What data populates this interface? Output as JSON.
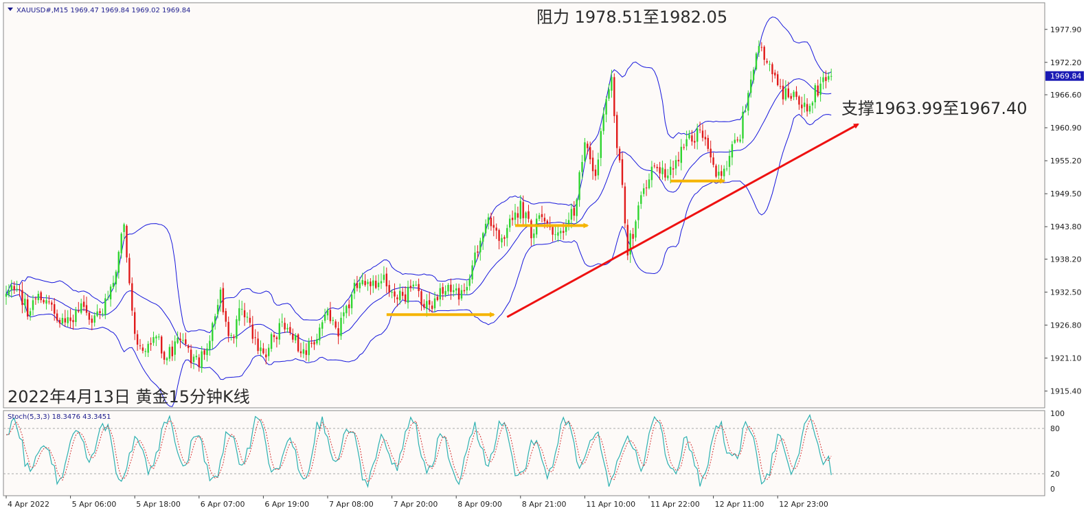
{
  "chart_data": {
    "type": "candlestick",
    "symbol_header": "XAUUSD#,M15  1969.47 1969.84 1969.02 1969.84",
    "current_price_label": "1969.84",
    "current_price": 1969.84,
    "resistance_text": "阻力 1978.51至1982.05",
    "support_text": "支撑1963.99至1967.40",
    "caption_text": "2022年4月13日 黄金15分钟K线",
    "ylim": [
      1912.5,
      1982.5
    ],
    "y_ticks": [
      {
        "label": "1977.90",
        "value": 1977.9
      },
      {
        "label": "1972.20",
        "value": 1972.2
      },
      {
        "label": "1966.60",
        "value": 1966.6
      },
      {
        "label": "1960.90",
        "value": 1960.9
      },
      {
        "label": "1955.20",
        "value": 1955.2
      },
      {
        "label": "1949.50",
        "value": 1949.5
      },
      {
        "label": "1943.80",
        "value": 1943.8
      },
      {
        "label": "1938.20",
        "value": 1938.2
      },
      {
        "label": "1932.50",
        "value": 1932.5
      },
      {
        "label": "1926.80",
        "value": 1926.8
      },
      {
        "label": "1921.10",
        "value": 1921.1
      },
      {
        "label": "1915.40",
        "value": 1915.4
      }
    ],
    "x_ticks": [
      {
        "label": "4 Apr 2022",
        "bar": 0
      },
      {
        "label": "5 Apr 06:00",
        "bar": 24
      },
      {
        "label": "5 Apr 18:00",
        "bar": 48
      },
      {
        "label": "6 Apr 07:00",
        "bar": 72
      },
      {
        "label": "6 Apr 19:00",
        "bar": 96
      },
      {
        "label": "7 Apr 08:00",
        "bar": 120
      },
      {
        "label": "7 Apr 20:00",
        "bar": 144
      },
      {
        "label": "8 Apr 09:00",
        "bar": 168
      },
      {
        "label": "8 Apr 21:00",
        "bar": 192
      },
      {
        "label": "11 Apr 10:00",
        "bar": 216
      },
      {
        "label": "11 Apr 22:00",
        "bar": 240
      },
      {
        "label": "12 Apr 11:00",
        "bar": 264
      },
      {
        "label": "12 Apr 23:00",
        "bar": 288
      }
    ],
    "price_path": [
      [
        0,
        1931
      ],
      [
        4,
        1934
      ],
      [
        8,
        1929
      ],
      [
        12,
        1932
      ],
      [
        16,
        1930
      ],
      [
        20,
        1928
      ],
      [
        24,
        1927
      ],
      [
        28,
        1930
      ],
      [
        32,
        1928
      ],
      [
        36,
        1929
      ],
      [
        40,
        1934
      ],
      [
        44,
        1944
      ],
      [
        46,
        1934
      ],
      [
        48,
        1924
      ],
      [
        52,
        1922
      ],
      [
        56,
        1925
      ],
      [
        60,
        1921
      ],
      [
        64,
        1924
      ],
      [
        68,
        1922
      ],
      [
        72,
        1920
      ],
      [
        76,
        1925
      ],
      [
        80,
        1932
      ],
      [
        84,
        1924
      ],
      [
        88,
        1930
      ],
      [
        92,
        1925
      ],
      [
        96,
        1921
      ],
      [
        100,
        1925
      ],
      [
        104,
        1927
      ],
      [
        108,
        1924
      ],
      [
        112,
        1922
      ],
      [
        116,
        1925
      ],
      [
        120,
        1929
      ],
      [
        124,
        1926
      ],
      [
        128,
        1931
      ],
      [
        132,
        1935
      ],
      [
        136,
        1933
      ],
      [
        140,
        1935
      ],
      [
        144,
        1933
      ],
      [
        148,
        1931
      ],
      [
        152,
        1934
      ],
      [
        156,
        1930
      ],
      [
        160,
        1931
      ],
      [
        164,
        1933
      ],
      [
        168,
        1932
      ],
      [
        172,
        1934
      ],
      [
        176,
        1940
      ],
      [
        180,
        1945
      ],
      [
        184,
        1941
      ],
      [
        188,
        1944
      ],
      [
        192,
        1947
      ],
      [
        196,
        1943
      ],
      [
        200,
        1945
      ],
      [
        204,
        1943
      ],
      [
        208,
        1944
      ],
      [
        212,
        1947
      ],
      [
        216,
        1958
      ],
      [
        220,
        1953
      ],
      [
        224,
        1966
      ],
      [
        226,
        1969
      ],
      [
        228,
        1958
      ],
      [
        230,
        1950
      ],
      [
        232,
        1940
      ],
      [
        234,
        1943
      ],
      [
        238,
        1950
      ],
      [
        242,
        1955
      ],
      [
        246,
        1952
      ],
      [
        250,
        1955
      ],
      [
        254,
        1958
      ],
      [
        258,
        1960
      ],
      [
        262,
        1958
      ],
      [
        266,
        1952
      ],
      [
        270,
        1956
      ],
      [
        274,
        1960
      ],
      [
        278,
        1970
      ],
      [
        282,
        1975
      ],
      [
        286,
        1970
      ],
      [
        290,
        1967
      ],
      [
        294,
        1966
      ],
      [
        298,
        1964
      ],
      [
        302,
        1967
      ],
      [
        306,
        1970
      ],
      [
        308,
        1969.84
      ]
    ],
    "bollinger": {
      "period": 20,
      "deviation": 2
    },
    "support_arrows": [
      {
        "from_bar": 142,
        "to_bar": 182,
        "price": 1928.6
      },
      {
        "from_bar": 190,
        "to_bar": 217,
        "price": 1944.0
      },
      {
        "from_bar": 248,
        "to_bar": 268,
        "price": 1951.7
      }
    ],
    "trend_line": {
      "from_bar": 187,
      "from_price": 1928.2,
      "to_bar": 318,
      "to_price": 1961.5
    },
    "stoch": {
      "header": "Stoch(5,3,3) 18.3476 43.3451",
      "k": 18.3476,
      "d": 43.3451,
      "levels": [
        20,
        80
      ],
      "ylim": [
        0,
        100
      ],
      "y_ticks": [
        {
          "label": "100",
          "value": 100
        },
        {
          "label": "80",
          "value": 80
        },
        {
          "label": "20",
          "value": 20
        },
        {
          "label": "0",
          "value": 0
        }
      ]
    },
    "colors": {
      "background": "#fdfaf8",
      "bull": "#2fd42f",
      "bear": "#e01a1a",
      "bands": "#1515dc",
      "trend": "#ee1111",
      "arrow": "#f5b400",
      "stoch_main": "#2bb0b0",
      "stoch_signal": "#d43333",
      "price_box": "#1a1ab4"
    }
  }
}
